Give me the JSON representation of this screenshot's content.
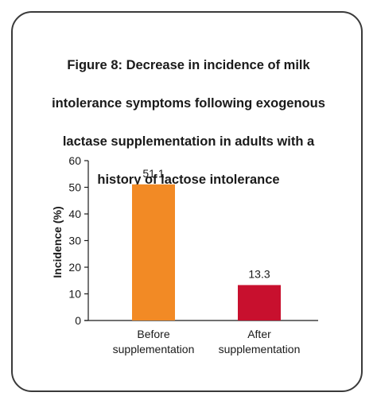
{
  "chart_data": {
    "type": "bar",
    "title": "Figure 8: Decrease in incidence of milk intolerance symptoms following exogenous lactase supplementation in adults with a history of lactose intolerance",
    "title_lines": [
      "Figure 8: Decrease in incidence of milk",
      "intolerance symptoms following exogenous",
      "lactase supplementation in adults with a",
      "history of lactose intolerance"
    ],
    "categories": [
      [
        "Before",
        "supplementation"
      ],
      [
        "After",
        "supplementation"
      ]
    ],
    "values": [
      51.1,
      13.3
    ],
    "value_labels": [
      "51.1",
      "13.3"
    ],
    "bar_colors": [
      "#F28A25",
      "#C8102E"
    ],
    "xlabel": "",
    "ylabel": "Incidence (%)",
    "ylim": [
      0,
      60
    ],
    "yticks": [
      0,
      10,
      20,
      30,
      40,
      50,
      60
    ],
    "grid": false,
    "legend": "none"
  }
}
